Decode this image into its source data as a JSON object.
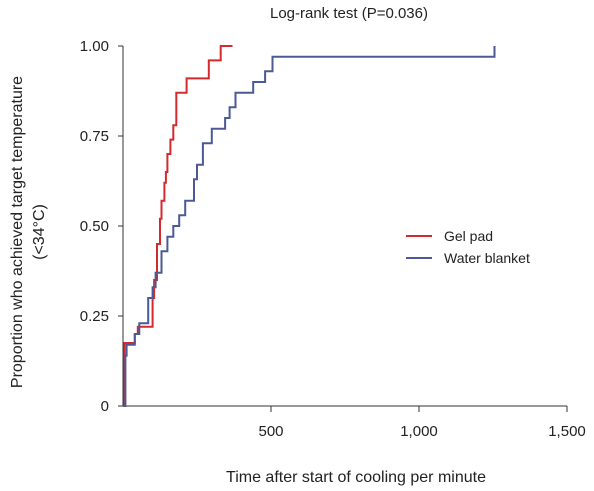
{
  "chart_data": {
    "type": "line",
    "step": true,
    "title": "Log-rank test (P=0.036)",
    "xlabel": "Time after start of cooling per minute",
    "ylabel": [
      "Proportion who achieved target temperature",
      "(<34°C)"
    ],
    "xlim": [
      0,
      1500
    ],
    "ylim": [
      0,
      1
    ],
    "x_ticks": [
      500,
      1000,
      1500
    ],
    "x_tick_labels": [
      "500",
      "1,000",
      "1,500"
    ],
    "y_ticks": [
      0,
      0.25,
      0.5,
      0.75,
      1.0
    ],
    "y_tick_labels": [
      "0",
      "0.25",
      "0.50",
      "0.75",
      "1.00"
    ],
    "grid": false,
    "legend_position": "right",
    "series": [
      {
        "name": "Gel pad",
        "color": "#d42a2f",
        "x": [
          0,
          5,
          5,
          40,
          40,
          50,
          50,
          100,
          100,
          105,
          105,
          115,
          115,
          125,
          125,
          130,
          130,
          140,
          140,
          145,
          145,
          150,
          150,
          160,
          160,
          170,
          170,
          180,
          180,
          215,
          215,
          290,
          290,
          330,
          330,
          370,
          370
        ],
        "y": [
          0,
          0,
          0.175,
          0.175,
          0.2,
          0.2,
          0.22,
          0.22,
          0.3,
          0.3,
          0.35,
          0.35,
          0.45,
          0.45,
          0.52,
          0.52,
          0.57,
          0.57,
          0.62,
          0.62,
          0.65,
          0.65,
          0.7,
          0.7,
          0.74,
          0.74,
          0.78,
          0.78,
          0.87,
          0.87,
          0.91,
          0.91,
          0.96,
          0.96,
          1.0,
          1.0,
          1.0
        ]
      },
      {
        "name": "Water blanket",
        "color": "#4b5a96",
        "x": [
          0,
          8,
          8,
          12,
          12,
          40,
          40,
          55,
          55,
          85,
          85,
          100,
          100,
          110,
          110,
          130,
          130,
          150,
          150,
          170,
          170,
          190,
          190,
          210,
          210,
          240,
          240,
          250,
          250,
          270,
          270,
          300,
          300,
          345,
          345,
          360,
          360,
          380,
          380,
          440,
          440,
          480,
          480,
          505,
          505,
          600,
          600,
          1255,
          1255
        ],
        "y": [
          0,
          0,
          0.14,
          0.14,
          0.17,
          0.17,
          0.2,
          0.2,
          0.23,
          0.23,
          0.3,
          0.3,
          0.33,
          0.33,
          0.37,
          0.37,
          0.43,
          0.43,
          0.47,
          0.47,
          0.5,
          0.5,
          0.53,
          0.53,
          0.57,
          0.57,
          0.63,
          0.63,
          0.67,
          0.67,
          0.73,
          0.73,
          0.77,
          0.77,
          0.8,
          0.8,
          0.83,
          0.83,
          0.87,
          0.87,
          0.9,
          0.9,
          0.93,
          0.93,
          0.97,
          0.97,
          0.97,
          0.97,
          1.0
        ]
      }
    ]
  }
}
